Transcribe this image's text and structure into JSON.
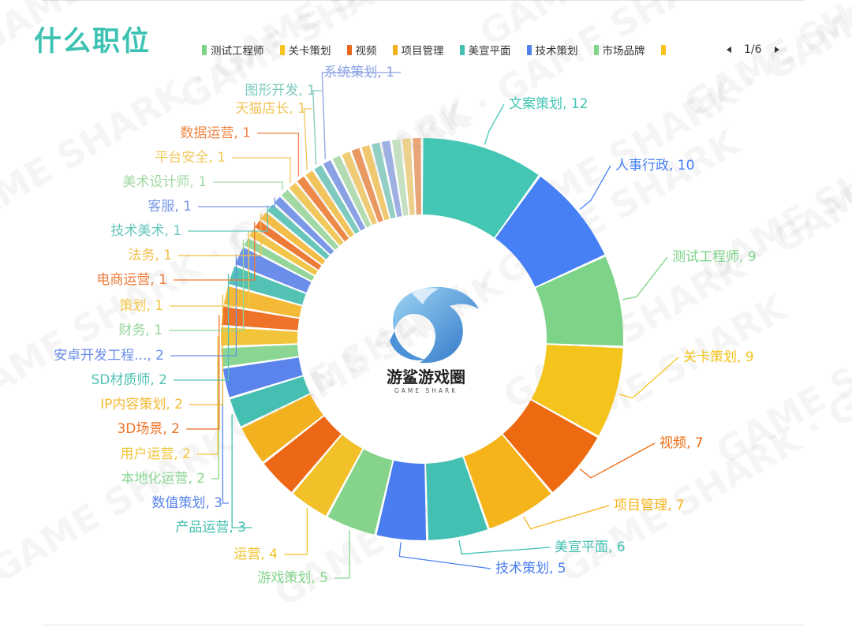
{
  "title": "什么职位",
  "pager": {
    "text": "1/6"
  },
  "logo": {
    "name_cn": "游鲨游戏圈",
    "name_en": "GAME SHARK"
  },
  "watermark": "GAME SHARK",
  "legend_colors": [
    "#7ed488",
    "#f4c41c",
    "#e8651a",
    "#f2b018",
    "#43bfb2",
    "#4f7fe8",
    "#7ed488",
    "#f4c41c"
  ],
  "chart_data": {
    "type": "pie",
    "donut": true,
    "legend_visible": [
      "测试工程师",
      "关卡策划",
      "视频",
      "项目管理",
      "美宣平面",
      "技术策划",
      "市场品牌",
      ""
    ],
    "slices": [
      {
        "label": "文案策划",
        "value": 12,
        "color": "#43c6b4"
      },
      {
        "label": "人事行政",
        "value": 10,
        "color": "#4680f4"
      },
      {
        "label": "测试工程师",
        "value": 9,
        "color": "#7dd387"
      },
      {
        "label": "关卡策划",
        "value": 9,
        "color": "#f4c41c"
      },
      {
        "label": "视频",
        "value": 7,
        "color": "#ee6a10"
      },
      {
        "label": "项目管理",
        "value": 7,
        "color": "#f6b41b"
      },
      {
        "label": "美宣平面",
        "value": 6,
        "color": "#44c0b3"
      },
      {
        "label": "技术策划",
        "value": 5,
        "color": "#4a7ef0"
      },
      {
        "label": "游戏策划",
        "value": 5,
        "color": "#86d48c"
      },
      {
        "label": "运营",
        "value": 4,
        "color": "#f2c12a"
      },
      {
        "label": "",
        "value": 4,
        "color": "#ec6816"
      },
      {
        "label": "",
        "value": 4,
        "color": "#f2b21f"
      },
      {
        "label": "产品运营",
        "value": 3,
        "color": "#45bfb1"
      },
      {
        "label": "数值策划",
        "value": 3,
        "color": "#5a84ec"
      },
      {
        "label": "本地化运营",
        "value": 2,
        "color": "#8cd694"
      },
      {
        "label": "用户运营",
        "value": 2,
        "color": "#f2c43a"
      },
      {
        "label": "3D场景",
        "value": 2,
        "color": "#ee7228"
      },
      {
        "label": "IP内容策划",
        "value": 2,
        "color": "#f4b936"
      },
      {
        "label": "SD材质师",
        "value": 2,
        "color": "#53c2b5"
      },
      {
        "label": "安卓开发工程...",
        "value": 2,
        "color": "#6a8eea"
      },
      {
        "label": "财务",
        "value": 1,
        "color": "#94d69a"
      },
      {
        "label": "策划",
        "value": 1,
        "color": "#f2c64b"
      },
      {
        "label": "电商运营",
        "value": 1,
        "color": "#ee7a38"
      },
      {
        "label": "法务",
        "value": 1,
        "color": "#f4bd48"
      },
      {
        "label": "技术美术",
        "value": 1,
        "color": "#66c6ba"
      },
      {
        "label": "客服",
        "value": 1,
        "color": "#7a98e8"
      },
      {
        "label": "美术设计师",
        "value": 1,
        "color": "#a2d8a4"
      },
      {
        "label": "平台安全",
        "value": 1,
        "color": "#f0c85c"
      },
      {
        "label": "数据运营",
        "value": 1,
        "color": "#ec8848"
      },
      {
        "label": "天猫店长",
        "value": 1,
        "color": "#f2c35a"
      },
      {
        "label": "图形开发",
        "value": 1,
        "color": "#7ecabe"
      },
      {
        "label": "系统策划",
        "value": 1,
        "color": "#8aa2e4"
      },
      {
        "label": "",
        "value": 1,
        "color": "#b4dcb2"
      },
      {
        "label": "",
        "value": 1,
        "color": "#eecb74"
      },
      {
        "label": "",
        "value": 1,
        "color": "#e89860"
      },
      {
        "label": "",
        "value": 1,
        "color": "#f0c870"
      },
      {
        "label": "",
        "value": 1,
        "color": "#92cec4"
      },
      {
        "label": "",
        "value": 1,
        "color": "#9eb0e2"
      },
      {
        "label": "",
        "value": 1,
        "color": "#c4e0c0"
      },
      {
        "label": "",
        "value": 1,
        "color": "#ecd08c"
      },
      {
        "label": "",
        "value": 1,
        "color": "#e8a678"
      }
    ]
  }
}
